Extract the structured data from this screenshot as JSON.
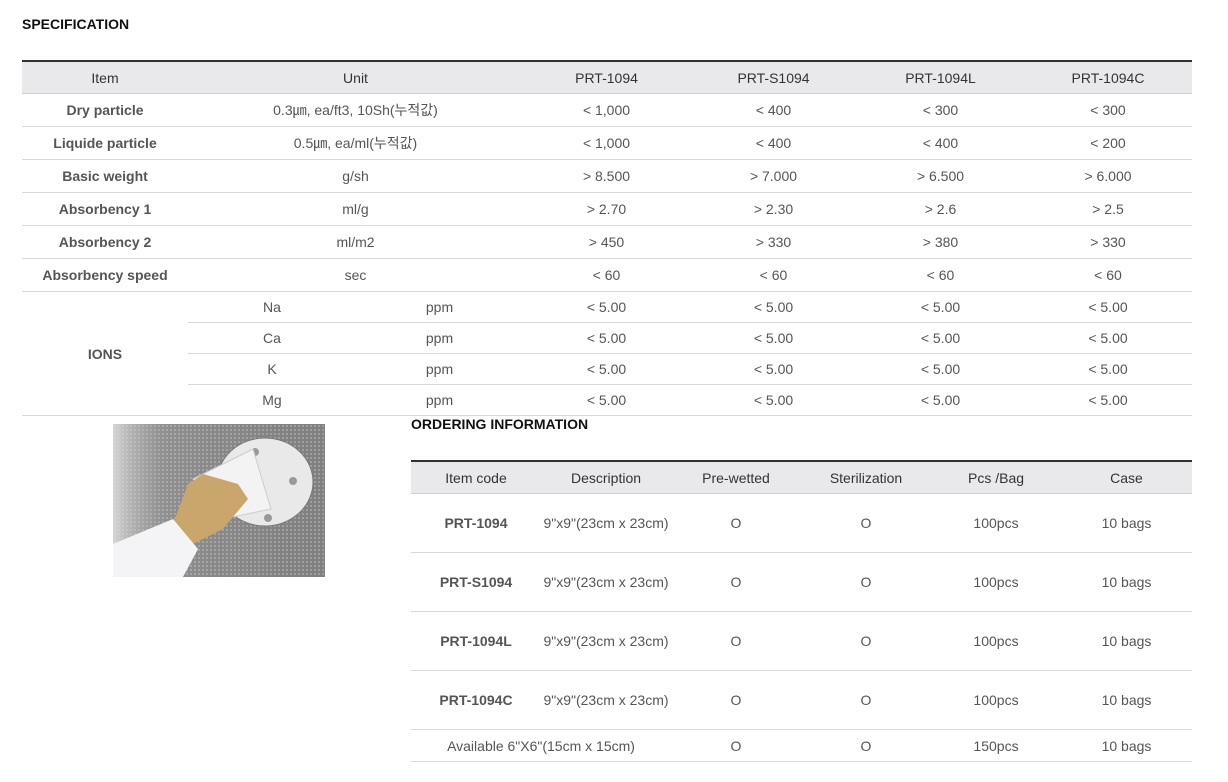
{
  "spec": {
    "title": "SPECIFICATION",
    "headers": [
      "Item",
      "Unit",
      "PRT-1094",
      "PRT-S1094",
      "PRT-1094L",
      "PRT-1094C"
    ],
    "rows": [
      {
        "item": "Dry particle",
        "unit": "0.3㎛, ea/ft3, 10Sh(누적값)",
        "values": [
          "< 1,000",
          "< 400",
          "< 300",
          "< 300"
        ]
      },
      {
        "item": "Liquide particle",
        "unit": "0.5㎛, ea/ml(누적값)",
        "values": [
          "< 1,000",
          "< 400",
          "< 400",
          "< 200"
        ]
      },
      {
        "item": "Basic weight",
        "unit": "g/sh",
        "values": [
          "> 8.500",
          "> 7.000",
          "> 6.500",
          "> 6.000"
        ]
      },
      {
        "item": "Absorbency 1",
        "unit": "ml/g",
        "values": [
          "> 2.70",
          "> 2.30",
          "> 2.6",
          "> 2.5"
        ]
      },
      {
        "item": "Absorbency 2",
        "unit": "ml/m2",
        "values": [
          "> 450",
          "> 330",
          "> 380",
          "> 330"
        ]
      },
      {
        "item": "Absorbency speed",
        "unit": "sec",
        "values": [
          "< 60",
          "< 60",
          "< 60",
          "< 60"
        ]
      }
    ],
    "ions": {
      "label": "IONS",
      "rows": [
        {
          "ion": "Na",
          "unit": "ppm",
          "values": [
            "< 5.00",
            "< 5.00",
            "< 5.00",
            "< 5.00"
          ]
        },
        {
          "ion": "Ca",
          "unit": "ppm",
          "values": [
            "< 5.00",
            "< 5.00",
            "< 5.00",
            "< 5.00"
          ]
        },
        {
          "ion": "K",
          "unit": "ppm",
          "values": [
            "< 5.00",
            "< 5.00",
            "< 5.00",
            "< 5.00"
          ]
        },
        {
          "ion": "Mg",
          "unit": "ppm",
          "values": [
            "< 5.00",
            "< 5.00",
            "< 5.00",
            "< 5.00"
          ]
        }
      ]
    }
  },
  "order": {
    "title": "ORDERING INFORMATION",
    "headers": [
      "Item code",
      "Description",
      "Pre-wetted",
      "Sterilization",
      "Pcs /Bag",
      "Case"
    ],
    "rows": [
      [
        "PRT-1094",
        "9\"x9\"(23cm x 23cm)",
        "O",
        "O",
        "100pcs",
        "10 bags"
      ],
      [
        "PRT-S1094",
        "9\"x9\"(23cm x 23cm)",
        "O",
        "O",
        "100pcs",
        "10 bags"
      ],
      [
        "PRT-1094L",
        "9\"x9\"(23cm x 23cm)",
        "O",
        "O",
        "100pcs",
        "10 bags"
      ],
      [
        "PRT-1094C",
        "9\"x9\"(23cm x 23cm)",
        "O",
        "O",
        "100pcs",
        "10 bags"
      ]
    ],
    "available": [
      "Available 6\"X6\"(15cm x 15cm)",
      "O",
      "O",
      "150pcs",
      "10 bags"
    ]
  }
}
